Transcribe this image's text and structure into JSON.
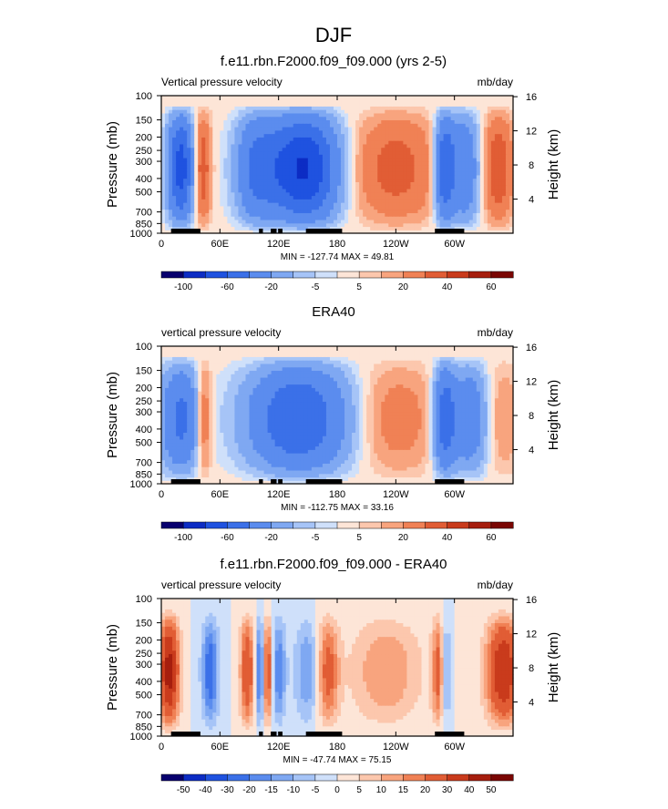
{
  "figure": {
    "title": "DJF"
  },
  "chart_data": [
    {
      "type": "heatmap",
      "title": "f.e11.rbn.F2000.f09_f09.000 (yrs 2-5)",
      "left_label": "Vertical pressure velocity",
      "right_label": "mb/day",
      "xlabel": "",
      "ylabel": "Pressure (mb)",
      "y2label": "Height (km)",
      "x_ticks": [
        "0",
        "60E",
        "120E",
        "180",
        "120W",
        "60W"
      ],
      "x_tick_values": [
        0,
        60,
        120,
        180,
        240,
        300
      ],
      "xlim": [
        0,
        360
      ],
      "y_ticks": [
        "100",
        "150",
        "200",
        "250",
        "300",
        "400",
        "500",
        "700",
        "850",
        "1000"
      ],
      "y_tick_values": [
        100,
        150,
        200,
        250,
        300,
        400,
        500,
        700,
        850,
        1000
      ],
      "ylim": [
        1000,
        100
      ],
      "y2_ticks": [
        "4",
        "8",
        "12",
        "16"
      ],
      "y2_tick_values": [
        4,
        8,
        12,
        16
      ],
      "stats": "MIN = -127.74  MAX =  49.81",
      "colorbar": {
        "labels": [
          "-100",
          "-60",
          "-20",
          "-5",
          "5",
          "20",
          "40",
          "60"
        ],
        "colors": [
          "#08006e",
          "#0c2cc4",
          "#1f52e0",
          "#3b70e8",
          "#5b8cee",
          "#7fa8f2",
          "#a6c4f7",
          "#cfe0fa",
          "#fde5d7",
          "#fcc7ad",
          "#f8a47e",
          "#f08155",
          "#e15d35",
          "#c93b1c",
          "#a61e0e",
          "#7a0603"
        ]
      }
    },
    {
      "type": "heatmap",
      "title": "ERA40",
      "left_label": "vertical pressure velocity",
      "right_label": "mb/day",
      "xlabel": "",
      "ylabel": "Pressure (mb)",
      "y2label": "Height (km)",
      "x_ticks": [
        "0",
        "60E",
        "120E",
        "180",
        "120W",
        "60W"
      ],
      "x_tick_values": [
        0,
        60,
        120,
        180,
        240,
        300
      ],
      "xlim": [
        0,
        360
      ],
      "y_ticks": [
        "100",
        "150",
        "200",
        "250",
        "300",
        "400",
        "500",
        "700",
        "850",
        "1000"
      ],
      "y_tick_values": [
        100,
        150,
        200,
        250,
        300,
        400,
        500,
        700,
        850,
        1000
      ],
      "ylim": [
        1000,
        100
      ],
      "y2_ticks": [
        "4",
        "8",
        "12",
        "16"
      ],
      "y2_tick_values": [
        4,
        8,
        12,
        16
      ],
      "stats": "MIN = -112.75  MAX =  33.16",
      "colorbar": {
        "labels": [
          "-100",
          "-60",
          "-20",
          "-5",
          "5",
          "20",
          "40",
          "60"
        ],
        "colors": [
          "#08006e",
          "#0c2cc4",
          "#1f52e0",
          "#3b70e8",
          "#5b8cee",
          "#7fa8f2",
          "#a6c4f7",
          "#cfe0fa",
          "#fde5d7",
          "#fcc7ad",
          "#f8a47e",
          "#f08155",
          "#e15d35",
          "#c93b1c",
          "#a61e0e",
          "#7a0603"
        ]
      }
    },
    {
      "type": "heatmap",
      "title": "f.e11.rbn.F2000.f09_f09.000 - ERA40",
      "left_label": "vertical pressure velocity",
      "right_label": "mb/day",
      "xlabel": "",
      "ylabel": "Pressure (mb)",
      "y2label": "Height (km)",
      "x_ticks": [
        "0",
        "60E",
        "120E",
        "180",
        "120W",
        "60W"
      ],
      "x_tick_values": [
        0,
        60,
        120,
        180,
        240,
        300
      ],
      "xlim": [
        0,
        360
      ],
      "y_ticks": [
        "100",
        "150",
        "200",
        "250",
        "300",
        "400",
        "500",
        "700",
        "850",
        "1000"
      ],
      "y_tick_values": [
        100,
        150,
        200,
        250,
        300,
        400,
        500,
        700,
        850,
        1000
      ],
      "ylim": [
        1000,
        100
      ],
      "y2_ticks": [
        "4",
        "8",
        "12",
        "16"
      ],
      "y2_tick_values": [
        4,
        8,
        12,
        16
      ],
      "stats": "MIN = -47.74  MAX =  75.15",
      "colorbar": {
        "labels": [
          "-50",
          "-40",
          "-30",
          "-20",
          "-15",
          "-10",
          "-5",
          "0",
          "5",
          "10",
          "15",
          "20",
          "30",
          "40",
          "50"
        ],
        "colors": [
          "#08006e",
          "#0c2cc4",
          "#1f52e0",
          "#3b70e8",
          "#5b8cee",
          "#7fa8f2",
          "#a6c4f7",
          "#cfe0fa",
          "#fde5d7",
          "#fcc7ad",
          "#f8a47e",
          "#f08155",
          "#e15d35",
          "#c93b1c",
          "#a61e0e",
          "#7a0603"
        ]
      }
    }
  ]
}
